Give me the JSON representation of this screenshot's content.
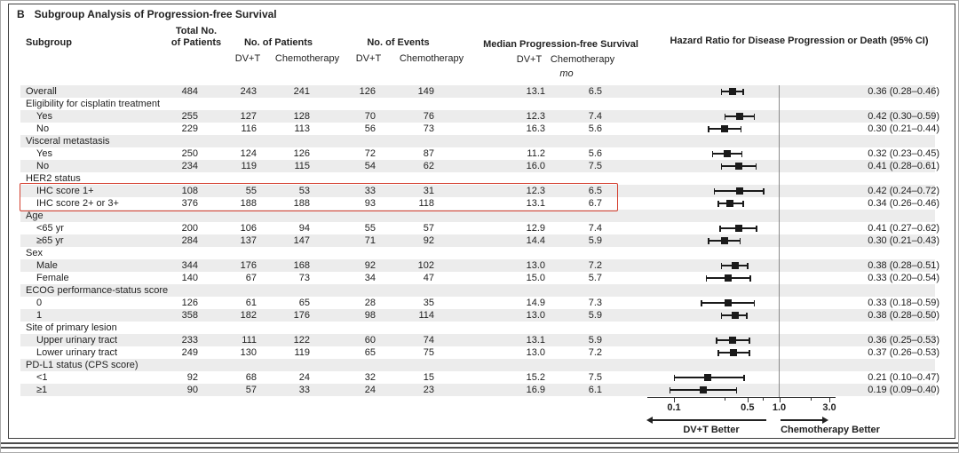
{
  "title": {
    "panel": "B",
    "text": "Subgroup Analysis of Progression-free Survival"
  },
  "columns": {
    "subgroup": "Subgroup",
    "total": "Total No.\nof Patients",
    "patients_group": "No. of Patients",
    "events_group": "No. of Events",
    "median_group": "Median Progression-free Survival",
    "hazard": "Hazard Ratio for Disease Progression or Death (95% CI)",
    "arm_dvt": "DV+T",
    "arm_chemo": "Chemotherapy",
    "median_unit": "mo"
  },
  "axis": {
    "scale": "log10",
    "tick_values": [
      0.1,
      0.5,
      1.0,
      3.0
    ],
    "tick_labels": [
      "0.1",
      "0.5",
      "1.0",
      "3.0"
    ],
    "minor_tick_values": [
      0.3,
      0.7,
      2.0
    ],
    "reference_value": 1.0,
    "left_label": "DV+T Better",
    "right_label": "Chemotherapy Better"
  },
  "highlight": {
    "rows": [
      "IHC score 1+",
      "IHC score 2+ or 3+"
    ],
    "color": "#d43f2f"
  },
  "colors": {
    "stripe": "#ececec",
    "marker": "#1a1a1a",
    "refline": "#8a8a8a",
    "highlight": "#d43f2f"
  },
  "chart_data": {
    "type": "forest",
    "x_axis": {
      "scale": "log10",
      "range": [
        0.1,
        3.0
      ],
      "ticks": [
        0.1,
        0.5,
        1.0,
        3.0
      ],
      "reference": 1.0
    },
    "rows": [
      {
        "label": "Overall",
        "indent": false,
        "total": "484",
        "n_dvt": "243",
        "n_chemo": "241",
        "ev_dvt": "126",
        "ev_chemo": "149",
        "med_dvt": "13.1",
        "med_chemo": "6.5",
        "hr": 0.36,
        "ci_low": 0.28,
        "ci_high": 0.46,
        "hr_text": "0.36 (0.28–0.46)"
      },
      {
        "label": "Eligibility for cisplatin treatment",
        "indent": false,
        "header": true
      },
      {
        "label": "Yes",
        "indent": true,
        "total": "255",
        "n_dvt": "127",
        "n_chemo": "128",
        "ev_dvt": "70",
        "ev_chemo": "76",
        "med_dvt": "12.3",
        "med_chemo": "7.4",
        "hr": 0.42,
        "ci_low": 0.3,
        "ci_high": 0.59,
        "hr_text": "0.42 (0.30–0.59)"
      },
      {
        "label": "No",
        "indent": true,
        "total": "229",
        "n_dvt": "116",
        "n_chemo": "113",
        "ev_dvt": "56",
        "ev_chemo": "73",
        "med_dvt": "16.3",
        "med_chemo": "5.6",
        "hr": 0.3,
        "ci_low": 0.21,
        "ci_high": 0.44,
        "hr_text": "0.30 (0.21–0.44)"
      },
      {
        "label": "Visceral metastasis",
        "indent": false,
        "header": true
      },
      {
        "label": "Yes",
        "indent": true,
        "total": "250",
        "n_dvt": "124",
        "n_chemo": "126",
        "ev_dvt": "72",
        "ev_chemo": "87",
        "med_dvt": "11.2",
        "med_chemo": "5.6",
        "hr": 0.32,
        "ci_low": 0.23,
        "ci_high": 0.45,
        "hr_text": "0.32 (0.23–0.45)"
      },
      {
        "label": "No",
        "indent": true,
        "total": "234",
        "n_dvt": "119",
        "n_chemo": "115",
        "ev_dvt": "54",
        "ev_chemo": "62",
        "med_dvt": "16.0",
        "med_chemo": "7.5",
        "hr": 0.41,
        "ci_low": 0.28,
        "ci_high": 0.61,
        "hr_text": "0.41 (0.28–0.61)"
      },
      {
        "label": "HER2 status",
        "indent": false,
        "header": true
      },
      {
        "label": "IHC score 1+",
        "indent": true,
        "total": "108",
        "n_dvt": "55",
        "n_chemo": "53",
        "ev_dvt": "33",
        "ev_chemo": "31",
        "med_dvt": "12.3",
        "med_chemo": "6.5",
        "hr": 0.42,
        "ci_low": 0.24,
        "ci_high": 0.72,
        "hr_text": "0.42 (0.24–0.72)"
      },
      {
        "label": "IHC score 2+ or 3+",
        "indent": true,
        "total": "376",
        "n_dvt": "188",
        "n_chemo": "188",
        "ev_dvt": "93",
        "ev_chemo": "118",
        "med_dvt": "13.1",
        "med_chemo": "6.7",
        "hr": 0.34,
        "ci_low": 0.26,
        "ci_high": 0.46,
        "hr_text": "0.34 (0.26–0.46)"
      },
      {
        "label": "Age",
        "indent": false,
        "header": true
      },
      {
        "label": "<65 yr",
        "indent": true,
        "total": "200",
        "n_dvt": "106",
        "n_chemo": "94",
        "ev_dvt": "55",
        "ev_chemo": "57",
        "med_dvt": "12.9",
        "med_chemo": "7.4",
        "hr": 0.41,
        "ci_low": 0.27,
        "ci_high": 0.62,
        "hr_text": "0.41 (0.27–0.62)"
      },
      {
        "label": "≥65 yr",
        "indent": true,
        "total": "284",
        "n_dvt": "137",
        "n_chemo": "147",
        "ev_dvt": "71",
        "ev_chemo": "92",
        "med_dvt": "14.4",
        "med_chemo": "5.9",
        "hr": 0.3,
        "ci_low": 0.21,
        "ci_high": 0.43,
        "hr_text": "0.30 (0.21–0.43)"
      },
      {
        "label": "Sex",
        "indent": false,
        "header": true
      },
      {
        "label": "Male",
        "indent": true,
        "total": "344",
        "n_dvt": "176",
        "n_chemo": "168",
        "ev_dvt": "92",
        "ev_chemo": "102",
        "med_dvt": "13.0",
        "med_chemo": "7.2",
        "hr": 0.38,
        "ci_low": 0.28,
        "ci_high": 0.51,
        "hr_text": "0.38 (0.28–0.51)"
      },
      {
        "label": "Female",
        "indent": true,
        "total": "140",
        "n_dvt": "67",
        "n_chemo": "73",
        "ev_dvt": "34",
        "ev_chemo": "47",
        "med_dvt": "15.0",
        "med_chemo": "5.7",
        "hr": 0.33,
        "ci_low": 0.2,
        "ci_high": 0.54,
        "hr_text": "0.33 (0.20–0.54)"
      },
      {
        "label": "ECOG performance-status score",
        "indent": false,
        "header": true
      },
      {
        "label": "0",
        "indent": true,
        "total": "126",
        "n_dvt": "61",
        "n_chemo": "65",
        "ev_dvt": "28",
        "ev_chemo": "35",
        "med_dvt": "14.9",
        "med_chemo": "7.3",
        "hr": 0.33,
        "ci_low": 0.18,
        "ci_high": 0.59,
        "hr_text": "0.33 (0.18–0.59)"
      },
      {
        "label": "1",
        "indent": true,
        "total": "358",
        "n_dvt": "182",
        "n_chemo": "176",
        "ev_dvt": "98",
        "ev_chemo": "114",
        "med_dvt": "13.0",
        "med_chemo": "5.9",
        "hr": 0.38,
        "ci_low": 0.28,
        "ci_high": 0.5,
        "hr_text": "0.38 (0.28–0.50)"
      },
      {
        "label": "Site of primary lesion",
        "indent": false,
        "header": true
      },
      {
        "label": "Upper urinary tract",
        "indent": true,
        "total": "233",
        "n_dvt": "111",
        "n_chemo": "122",
        "ev_dvt": "60",
        "ev_chemo": "74",
        "med_dvt": "13.1",
        "med_chemo": "5.9",
        "hr": 0.36,
        "ci_low": 0.25,
        "ci_high": 0.53,
        "hr_text": "0.36 (0.25–0.53)"
      },
      {
        "label": "Lower urinary tract",
        "indent": true,
        "total": "249",
        "n_dvt": "130",
        "n_chemo": "119",
        "ev_dvt": "65",
        "ev_chemo": "75",
        "med_dvt": "13.0",
        "med_chemo": "7.2",
        "hr": 0.37,
        "ci_low": 0.26,
        "ci_high": 0.53,
        "hr_text": "0.37 (0.26–0.53)"
      },
      {
        "label": "PD-L1 status (CPS score)",
        "indent": false,
        "header": true
      },
      {
        "label": "<1",
        "indent": true,
        "total": "92",
        "n_dvt": "68",
        "n_chemo": "24",
        "ev_dvt": "32",
        "ev_chemo": "15",
        "med_dvt": "15.2",
        "med_chemo": "7.5",
        "hr": 0.21,
        "ci_low": 0.1,
        "ci_high": 0.47,
        "hr_text": "0.21 (0.10–0.47)"
      },
      {
        "label": "≥1",
        "indent": true,
        "total": "90",
        "n_dvt": "57",
        "n_chemo": "33",
        "ev_dvt": "24",
        "ev_chemo": "23",
        "med_dvt": "16.9",
        "med_chemo": "6.1",
        "hr": 0.19,
        "ci_low": 0.09,
        "ci_high": 0.4,
        "hr_text": "0.19 (0.09–0.40)"
      }
    ]
  }
}
